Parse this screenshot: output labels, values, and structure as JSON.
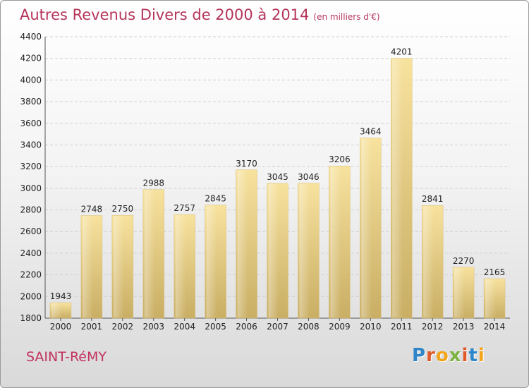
{
  "chart_data": {
    "type": "bar",
    "title": "Autres Revenus Divers de 2000 à 2014",
    "subtitle": "(en milliers d'€)",
    "categories": [
      "2000",
      "2001",
      "2002",
      "2003",
      "2004",
      "2005",
      "2006",
      "2007",
      "2008",
      "2009",
      "2010",
      "2011",
      "2012",
      "2013",
      "2014"
    ],
    "values": [
      1943,
      2748,
      2750,
      2988,
      2757,
      2845,
      3170,
      3045,
      3046,
      3206,
      3464,
      4201,
      2841,
      2270,
      2165
    ],
    "ylim": [
      1800,
      4400
    ],
    "yticks": [
      1800,
      2000,
      2200,
      2400,
      2600,
      2800,
      3000,
      3200,
      3400,
      3600,
      3800,
      4000,
      4200,
      4400
    ],
    "grid": true,
    "bar_color": "#e9cf86"
  },
  "footer": {
    "commune": "SAINT-RéMY",
    "logo_letters": [
      "P",
      "r",
      "o",
      "x",
      "i",
      "t",
      "i"
    ],
    "logo_colors": [
      "#2e86c8",
      "#e0592a",
      "#f2a51a",
      "#7cb342",
      "#e0592a",
      "#2e86c8",
      "#f2a51a"
    ]
  }
}
